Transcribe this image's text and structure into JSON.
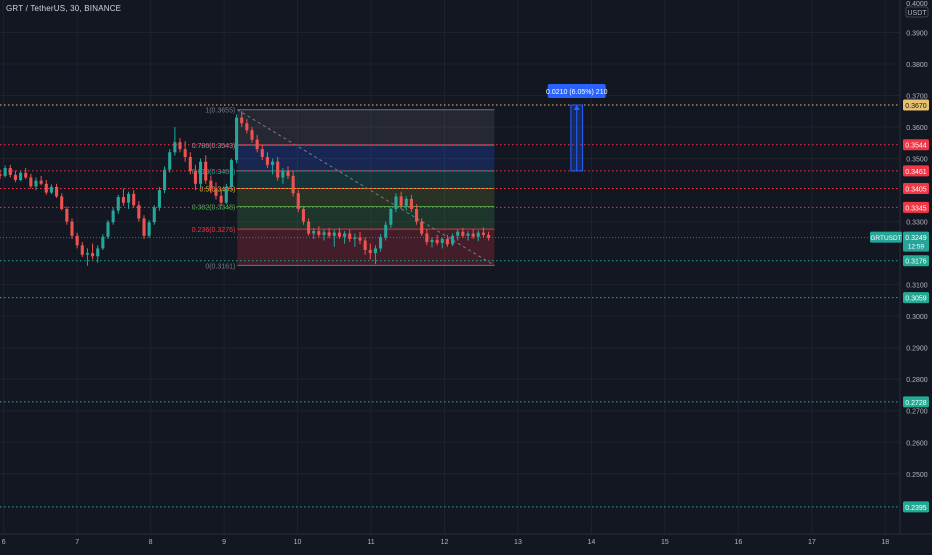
{
  "header": {
    "symbol": "GRT / TetherUS, 30, BINANCE"
  },
  "price_scale": {
    "currency_top": "0.4000",
    "currency": "USDT"
  },
  "chart_data": {
    "type": "candlestick",
    "symbol": "GRT / TetherUS",
    "interval": "30",
    "exchange": "BINANCE",
    "y_range": [
      0.2309,
      0.4003
    ],
    "x_range": [
      5.95,
      18.2
    ],
    "x_ticks": [
      {
        "value": 6,
        "label": "6"
      },
      {
        "value": 7,
        "label": "7"
      },
      {
        "value": 8,
        "label": "8"
      },
      {
        "value": 9,
        "label": "9"
      },
      {
        "value": 10,
        "label": "10"
      },
      {
        "value": 11,
        "label": "11"
      },
      {
        "value": 12,
        "label": "12"
      },
      {
        "value": 13,
        "label": "13"
      },
      {
        "value": 14,
        "label": "14"
      },
      {
        "value": 15,
        "label": "15"
      },
      {
        "value": 16,
        "label": "16"
      },
      {
        "value": 17,
        "label": "17"
      },
      {
        "value": 18,
        "label": "18"
      }
    ],
    "y_ticks": [
      "0.3900",
      "0.3800",
      "0.3700",
      "0.3600",
      "0.3500",
      "0.3300",
      "0.3100",
      "0.3000",
      "0.2900",
      "0.2800",
      "0.2700",
      "0.2600",
      "0.2500"
    ],
    "horizontal_levels": [
      {
        "price": 0.367,
        "label": "0.3670",
        "color": "#e8c170",
        "text_color": "#131722"
      },
      {
        "price": 0.3544,
        "label": "0.3544",
        "color": "#f23645",
        "text_color": "#ffffff"
      },
      {
        "price": 0.3461,
        "label": "0.3461",
        "color": "#f23645",
        "text_color": "#ffffff"
      },
      {
        "price": 0.3405,
        "label": "0.3405",
        "color": "#f23645",
        "text_color": "#ffffff"
      },
      {
        "price": 0.3345,
        "label": "0.3345",
        "color": "#f23645",
        "text_color": "#ffffff"
      },
      {
        "price": 0.3176,
        "label": "0.3176",
        "color": "#22ab94",
        "text_color": "#ffffff"
      },
      {
        "price": 0.3059,
        "label": "0.3059",
        "color": "#22ab94",
        "text_color": "#ffffff"
      },
      {
        "price": 0.2728,
        "label": "0.2728",
        "color": "#22ab94",
        "text_color": "#ffffff"
      },
      {
        "price": 0.2395,
        "label": "0.2395",
        "color": "#22ab94",
        "text_color": "#ffffff"
      }
    ],
    "current_price": {
      "label": "GRTUSDT",
      "value": "0.3249",
      "countdown": "12:59",
      "price": 0.3249,
      "color": "#26a69a"
    },
    "fibonacci": {
      "x_start": 9.18,
      "x_end": 12.68,
      "levels": [
        {
          "ratio": "1",
          "price": 0.3655,
          "label": "1(0.3655)",
          "color": "#787b86"
        },
        {
          "ratio": "0.786",
          "price": 0.3543,
          "label": "0.786(0.3543)",
          "color": "#9598a1"
        },
        {
          "ratio": "0.618",
          "price": 0.3461,
          "label": "0.618(0.3461)",
          "color": "#26a69a"
        },
        {
          "ratio": "0.5",
          "price": 0.3405,
          "label": "0.5(0.3405)",
          "color": "#c0ca33"
        },
        {
          "ratio": "0.382",
          "price": 0.3348,
          "label": "0.382(0.3348)",
          "color": "#4caf50"
        },
        {
          "ratio": "0.236",
          "price": 0.3276,
          "label": "0.236(0.3276)",
          "color": "#f23645"
        },
        {
          "ratio": "0",
          "price": 0.3161,
          "label": "0(0.3161)",
          "color": "#787b86"
        }
      ],
      "trend_line": {
        "from": [
          9.18,
          0.3655
        ],
        "to": [
          12.68,
          0.3161
        ]
      }
    },
    "measure": {
      "label": "0.0210 (6.05%) 210",
      "x_start": 13.72,
      "x_end": 13.88,
      "price_from": 0.3461,
      "price_to": 0.367,
      "color": "#2962ff"
    },
    "candles": [
      [
        5.95,
        0.345,
        0.3465,
        0.3435,
        0.3445
      ],
      [
        6.02,
        0.3445,
        0.3478,
        0.344,
        0.347
      ],
      [
        6.09,
        0.347,
        0.348,
        0.344,
        0.3448
      ],
      [
        6.16,
        0.3448,
        0.3462,
        0.3425,
        0.3432
      ],
      [
        6.23,
        0.3432,
        0.346,
        0.3428,
        0.3455
      ],
      [
        6.3,
        0.3455,
        0.347,
        0.3435,
        0.344
      ],
      [
        6.37,
        0.344,
        0.3452,
        0.3405,
        0.3412
      ],
      [
        6.44,
        0.3412,
        0.344,
        0.34,
        0.343
      ],
      [
        6.51,
        0.343,
        0.3445,
        0.3415,
        0.342
      ],
      [
        6.58,
        0.342,
        0.3432,
        0.3385,
        0.3392
      ],
      [
        6.65,
        0.3392,
        0.3418,
        0.3388,
        0.341
      ],
      [
        6.72,
        0.341,
        0.342,
        0.3375,
        0.338
      ],
      [
        6.79,
        0.338,
        0.339,
        0.3335,
        0.334
      ],
      [
        6.86,
        0.334,
        0.3348,
        0.329,
        0.33
      ],
      [
        6.93,
        0.33,
        0.331,
        0.3245,
        0.3255
      ],
      [
        7.0,
        0.3255,
        0.3265,
        0.3215,
        0.3225
      ],
      [
        7.07,
        0.3225,
        0.3235,
        0.3188,
        0.3195
      ],
      [
        7.14,
        0.3195,
        0.3215,
        0.316,
        0.32
      ],
      [
        7.21,
        0.32,
        0.323,
        0.318,
        0.319
      ],
      [
        7.28,
        0.319,
        0.3225,
        0.317,
        0.3215
      ],
      [
        7.35,
        0.3215,
        0.326,
        0.321,
        0.3252
      ],
      [
        7.42,
        0.3252,
        0.3305,
        0.3245,
        0.3298
      ],
      [
        7.49,
        0.3298,
        0.3345,
        0.329,
        0.3335
      ],
      [
        7.56,
        0.3335,
        0.3385,
        0.3325,
        0.3378
      ],
      [
        7.63,
        0.3378,
        0.3405,
        0.335,
        0.336
      ],
      [
        7.7,
        0.336,
        0.3395,
        0.334,
        0.3388
      ],
      [
        7.77,
        0.3388,
        0.34,
        0.3345,
        0.3352
      ],
      [
        7.84,
        0.3352,
        0.3365,
        0.33,
        0.331
      ],
      [
        7.91,
        0.331,
        0.332,
        0.3245,
        0.3255
      ],
      [
        7.98,
        0.3255,
        0.3305,
        0.3248,
        0.3298
      ],
      [
        8.05,
        0.3298,
        0.3352,
        0.329,
        0.3345
      ],
      [
        8.12,
        0.3345,
        0.341,
        0.3335,
        0.34
      ],
      [
        8.19,
        0.34,
        0.3475,
        0.339,
        0.3465
      ],
      [
        8.26,
        0.3465,
        0.353,
        0.3455,
        0.352
      ],
      [
        8.33,
        0.352,
        0.36,
        0.351,
        0.3552
      ],
      [
        8.4,
        0.3552,
        0.3565,
        0.352,
        0.353
      ],
      [
        8.47,
        0.353,
        0.3555,
        0.349,
        0.3505
      ],
      [
        8.54,
        0.3505,
        0.352,
        0.345,
        0.346
      ],
      [
        8.61,
        0.346,
        0.348,
        0.34,
        0.342
      ],
      [
        8.68,
        0.342,
        0.35,
        0.341,
        0.349
      ],
      [
        8.75,
        0.349,
        0.351,
        0.342,
        0.343
      ],
      [
        8.82,
        0.343,
        0.3445,
        0.339,
        0.3405
      ],
      [
        8.89,
        0.3405,
        0.3425,
        0.337,
        0.3382
      ],
      [
        8.96,
        0.3382,
        0.34,
        0.335,
        0.336
      ],
      [
        9.03,
        0.336,
        0.342,
        0.3355,
        0.341
      ],
      [
        9.1,
        0.341,
        0.35,
        0.34,
        0.3495
      ],
      [
        9.17,
        0.3495,
        0.364,
        0.3485,
        0.363
      ],
      [
        9.24,
        0.363,
        0.365,
        0.36,
        0.3612
      ],
      [
        9.31,
        0.3612,
        0.3625,
        0.358,
        0.359
      ],
      [
        9.38,
        0.359,
        0.36,
        0.355,
        0.356
      ],
      [
        9.45,
        0.356,
        0.3575,
        0.352,
        0.353
      ],
      [
        9.52,
        0.353,
        0.3545,
        0.3495,
        0.3505
      ],
      [
        9.59,
        0.3505,
        0.352,
        0.347,
        0.348
      ],
      [
        9.66,
        0.348,
        0.35,
        0.345,
        0.349
      ],
      [
        9.73,
        0.349,
        0.3505,
        0.343,
        0.344
      ],
      [
        9.8,
        0.344,
        0.347,
        0.342,
        0.346
      ],
      [
        9.87,
        0.346,
        0.3475,
        0.3435,
        0.3445
      ],
      [
        9.94,
        0.3445,
        0.346,
        0.338,
        0.339
      ],
      [
        10.01,
        0.339,
        0.34,
        0.333,
        0.334
      ],
      [
        10.08,
        0.334,
        0.335,
        0.329,
        0.33
      ],
      [
        10.15,
        0.33,
        0.331,
        0.3255,
        0.3262
      ],
      [
        10.22,
        0.3262,
        0.328,
        0.3245,
        0.327
      ],
      [
        10.29,
        0.327,
        0.3285,
        0.325,
        0.3258
      ],
      [
        10.36,
        0.3258,
        0.3275,
        0.324,
        0.3266
      ],
      [
        10.43,
        0.3266,
        0.328,
        0.3248,
        0.3255
      ],
      [
        10.5,
        0.3255,
        0.3275,
        0.322,
        0.3265
      ],
      [
        10.57,
        0.3265,
        0.328,
        0.3245,
        0.3252
      ],
      [
        10.64,
        0.3252,
        0.327,
        0.323,
        0.3262
      ],
      [
        10.71,
        0.3262,
        0.3275,
        0.3235,
        0.3245
      ],
      [
        10.78,
        0.3245,
        0.3262,
        0.322,
        0.325
      ],
      [
        10.85,
        0.325,
        0.3268,
        0.3228,
        0.324
      ],
      [
        10.92,
        0.324,
        0.325,
        0.3195,
        0.321
      ],
      [
        10.99,
        0.321,
        0.323,
        0.318,
        0.32
      ],
      [
        11.06,
        0.32,
        0.3225,
        0.3165,
        0.3215
      ],
      [
        11.13,
        0.3215,
        0.326,
        0.3205,
        0.325
      ],
      [
        11.2,
        0.325,
        0.33,
        0.324,
        0.329
      ],
      [
        11.27,
        0.329,
        0.3345,
        0.328,
        0.334
      ],
      [
        11.34,
        0.334,
        0.339,
        0.333,
        0.338
      ],
      [
        11.41,
        0.338,
        0.3395,
        0.334,
        0.335
      ],
      [
        11.48,
        0.335,
        0.338,
        0.3335,
        0.3372
      ],
      [
        11.55,
        0.3372,
        0.3385,
        0.333,
        0.334
      ],
      [
        11.62,
        0.334,
        0.3355,
        0.329,
        0.33
      ],
      [
        11.69,
        0.33,
        0.331,
        0.3255,
        0.3262
      ],
      [
        11.76,
        0.3262,
        0.3275,
        0.3225,
        0.3235
      ],
      [
        11.83,
        0.3235,
        0.325,
        0.3218,
        0.3242
      ],
      [
        11.9,
        0.3242,
        0.3258,
        0.3225,
        0.3232
      ],
      [
        11.97,
        0.3232,
        0.325,
        0.3215,
        0.3245
      ],
      [
        12.04,
        0.3245,
        0.3258,
        0.322,
        0.3228
      ],
      [
        12.11,
        0.3228,
        0.3262,
        0.3222,
        0.3255
      ],
      [
        12.18,
        0.3255,
        0.3275,
        0.324,
        0.3268
      ],
      [
        12.25,
        0.3268,
        0.328,
        0.3248,
        0.3255
      ],
      [
        12.32,
        0.3255,
        0.327,
        0.324,
        0.3262
      ],
      [
        12.39,
        0.3262,
        0.3275,
        0.3245,
        0.3252
      ],
      [
        12.46,
        0.3252,
        0.3272,
        0.3238,
        0.3265
      ],
      [
        12.53,
        0.3265,
        0.3282,
        0.325,
        0.3258
      ],
      [
        12.6,
        0.3258,
        0.3268,
        0.324,
        0.3249
      ]
    ]
  }
}
